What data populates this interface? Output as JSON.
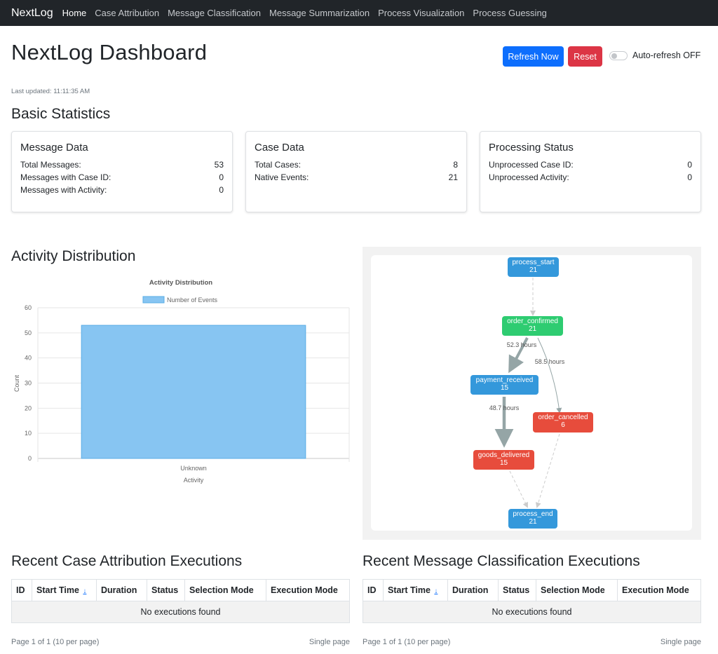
{
  "nav": {
    "brand": "NextLog",
    "links": [
      "Home",
      "Case Attribution",
      "Message Classification",
      "Message Summarization",
      "Process Visualization",
      "Process Guessing"
    ]
  },
  "header": {
    "title": "NextLog Dashboard",
    "refresh_label": "Refresh Now",
    "reset_label": "Reset",
    "autorefresh_label": "Auto-refresh OFF",
    "last_updated": "Last updated: 11:11:35 AM"
  },
  "stats": {
    "title": "Basic Statistics",
    "cards": [
      {
        "title": "Message Data",
        "rows": [
          {
            "label": "Total Messages:",
            "value": "53"
          },
          {
            "label": "Messages with Case ID:",
            "value": "0"
          },
          {
            "label": "Messages with Activity:",
            "value": "0"
          }
        ]
      },
      {
        "title": "Case Data",
        "rows": [
          {
            "label": "Total Cases:",
            "value": "8"
          },
          {
            "label": "Native Events:",
            "value": "21"
          }
        ]
      },
      {
        "title": "Processing Status",
        "rows": [
          {
            "label": "Unprocessed Case ID:",
            "value": "0"
          },
          {
            "label": "Unprocessed Activity:",
            "value": "0"
          }
        ]
      }
    ]
  },
  "activity": {
    "title": "Activity Distribution"
  },
  "chart_data": {
    "type": "bar",
    "title": "Activity Distribution",
    "categories": [
      "Unknown"
    ],
    "series": [
      {
        "name": "Number of Events",
        "values": [
          53
        ]
      }
    ],
    "xlabel": "Activity",
    "ylabel": "Count",
    "ylim": [
      0,
      60
    ],
    "yticks": [
      0,
      10,
      20,
      30,
      40,
      50,
      60
    ],
    "legend": "top",
    "grid": true,
    "colors": {
      "bar_fill": "#87c5f2",
      "bar_stroke": "#5aade6"
    }
  },
  "process_graph": {
    "nodes": [
      {
        "id": "process_start",
        "label": "process_start",
        "count": "21",
        "color": "blue"
      },
      {
        "id": "order_confirmed",
        "label": "order_confirmed",
        "count": "21",
        "color": "green"
      },
      {
        "id": "payment_received",
        "label": "payment_received",
        "count": "15",
        "color": "blue"
      },
      {
        "id": "order_cancelled",
        "label": "order_cancelled",
        "count": "6",
        "color": "red"
      },
      {
        "id": "goods_delivered",
        "label": "goods_delivered",
        "count": "15",
        "color": "red"
      },
      {
        "id": "process_end",
        "label": "process_end",
        "count": "21",
        "color": "blue"
      }
    ],
    "edges": [
      {
        "from": "process_start",
        "to": "order_confirmed",
        "label": ""
      },
      {
        "from": "order_confirmed",
        "to": "payment_received",
        "label": "52.3 hours"
      },
      {
        "from": "order_confirmed",
        "to": "order_cancelled",
        "label": "58.5 hours"
      },
      {
        "from": "payment_received",
        "to": "goods_delivered",
        "label": "48.7 hours"
      },
      {
        "from": "goods_delivered",
        "to": "process_end",
        "label": ""
      },
      {
        "from": "order_cancelled",
        "to": "process_end",
        "label": ""
      }
    ]
  },
  "case_attribution": {
    "title": "Recent Case Attribution Executions",
    "columns": [
      "ID",
      "Start Time",
      "Duration",
      "Status",
      "Selection Mode",
      "Execution Mode"
    ],
    "sort_indicator": "↓",
    "empty_text": "No executions found",
    "page_info": "Page 1 of 1 (10 per page)",
    "pagination": "Single page"
  },
  "message_classification": {
    "title": "Recent Message Classification Executions",
    "columns": [
      "ID",
      "Start Time",
      "Duration",
      "Status",
      "Selection Mode",
      "Execution Mode"
    ],
    "sort_indicator": "↓",
    "empty_text": "No executions found",
    "page_info": "Page 1 of 1 (10 per page)",
    "pagination": "Single page"
  }
}
